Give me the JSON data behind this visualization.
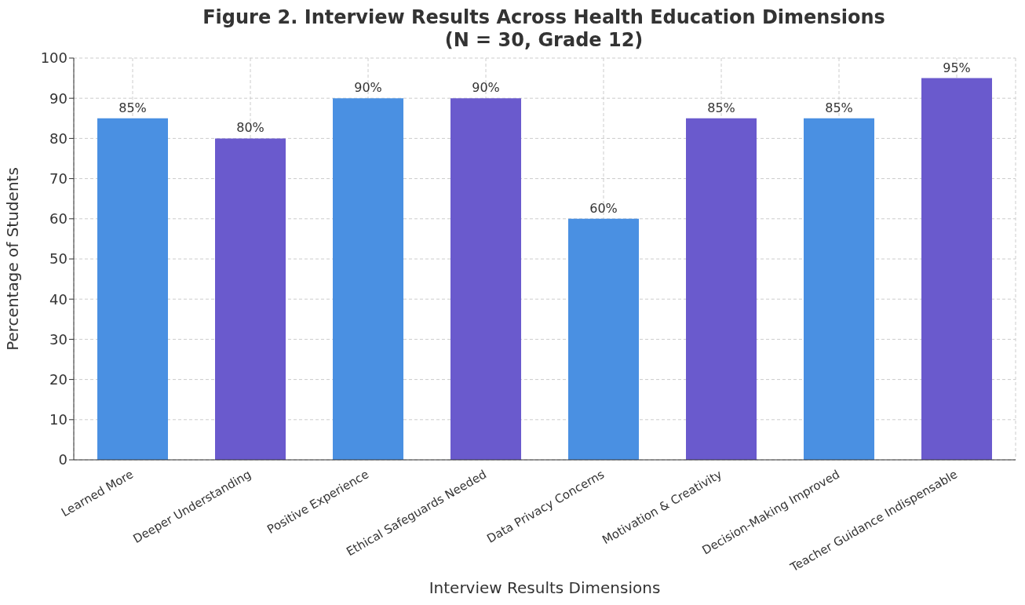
{
  "chart_data": {
    "type": "bar",
    "title": "Figure 2. Interview Results Across Health Education Dimensions\n(N = 30, Grade 12)",
    "xlabel": "Interview Results Dimensions",
    "ylabel": "Percentage of Students",
    "categories": [
      "Learned More",
      "Deeper Understanding",
      "Positive Experience",
      "Ethical Safeguards Needed",
      "Data Privacy Concerns",
      "Motivation & Creativity",
      "Decision-Making Improved",
      "Teacher Guidance Indispensable"
    ],
    "values": [
      85,
      80,
      90,
      90,
      60,
      85,
      85,
      95
    ],
    "colors": [
      "#4a90e2",
      "#6a5acd",
      "#4a90e2",
      "#6a5acd",
      "#4a90e2",
      "#6a5acd",
      "#4a90e2",
      "#6a5acd"
    ],
    "value_labels": [
      "85%",
      "80%",
      "90%",
      "90%",
      "60%",
      "85%",
      "85%",
      "95%"
    ],
    "ylim": [
      0,
      100
    ],
    "yticks": [
      0,
      10,
      20,
      30,
      40,
      50,
      60,
      70,
      80,
      90,
      100
    ],
    "grid": true
  }
}
